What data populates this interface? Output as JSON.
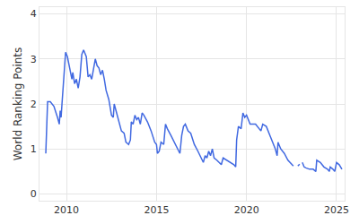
{
  "chart_data": {
    "type": "line",
    "y_label": "World Ranking Points",
    "color": "#4169e1",
    "grid": true,
    "xlim": [
      2008.5,
      2025.45
    ],
    "xticks": [
      2010,
      2015,
      2020,
      2025
    ],
    "ylim": [
      -0.15,
      4.15
    ],
    "yticks": [
      0,
      1,
      2,
      3,
      4
    ],
    "x": [
      2008.85,
      2008.9,
      2008.95,
      2009.1,
      2009.3,
      2009.5,
      2009.6,
      2009.65,
      2009.7,
      2009.75,
      2009.8,
      2009.9,
      2009.95,
      2010.05,
      2010.2,
      2010.3,
      2010.35,
      2010.45,
      2010.55,
      2010.65,
      2010.75,
      2010.85,
      2010.95,
      2011.1,
      2011.2,
      2011.3,
      2011.4,
      2011.5,
      2011.6,
      2011.7,
      2011.8,
      2011.9,
      2012.0,
      2012.1,
      2012.2,
      2012.35,
      2012.5,
      2012.6,
      2012.65,
      2012.75,
      2012.9,
      2013.05,
      2013.2,
      2013.3,
      2013.45,
      2013.55,
      2013.6,
      2013.7,
      2013.8,
      2013.9,
      2014.0,
      2014.1,
      2014.2,
      2014.3,
      2014.5,
      2014.7,
      2014.9,
      2015.0,
      2015.05,
      2015.15,
      2015.25,
      2015.4,
      2015.5,
      2015.6,
      2015.8,
      2016.0,
      2016.2,
      2016.3,
      2016.4,
      2016.5,
      2016.6,
      2016.75,
      2016.9,
      2017.1,
      2017.3,
      2017.5,
      2017.6,
      2017.7,
      2017.8,
      2017.9,
      2018.0,
      2018.1,
      2018.2,
      2018.35,
      2018.5,
      2018.6,
      2018.7,
      2018.9,
      2019.1,
      2019.3,
      2019.4,
      2019.45,
      2019.55,
      2019.7,
      2019.8,
      2019.9,
      2020.0,
      2020.2,
      2020.5,
      2020.7,
      2020.8,
      2020.9,
      2021.1,
      2021.3,
      2021.5,
      2021.6,
      2021.7,
      2021.75,
      2021.9,
      2022.1,
      2022.3,
      2022.5,
      2022.6,
      2022.7,
      2022.85,
      2022.95,
      2023.0,
      2023.1,
      2023.2,
      2023.3,
      2023.5,
      2023.7,
      2023.85,
      2023.9,
      2024.1,
      2024.3,
      2024.5,
      2024.6,
      2024.65,
      2024.8,
      2024.9,
      2025.0,
      2025.15,
      2025.3
    ],
    "values": [
      0.9,
      1.4,
      2.05,
      2.05,
      1.95,
      1.7,
      1.55,
      1.85,
      1.7,
      2.0,
      2.35,
      2.9,
      3.15,
      3.05,
      2.75,
      2.55,
      2.7,
      2.45,
      2.55,
      2.35,
      2.6,
      3.1,
      3.2,
      3.05,
      2.6,
      2.65,
      2.55,
      2.75,
      3.0,
      2.85,
      2.8,
      2.65,
      2.75,
      2.55,
      2.3,
      2.1,
      1.75,
      1.7,
      2.0,
      1.85,
      1.6,
      1.4,
      1.35,
      1.15,
      1.1,
      1.2,
      1.6,
      1.55,
      1.75,
      1.65,
      1.7,
      1.55,
      1.8,
      1.75,
      1.6,
      1.4,
      1.15,
      1.1,
      0.9,
      0.95,
      1.15,
      1.1,
      1.55,
      1.45,
      1.3,
      1.15,
      1.0,
      0.9,
      1.3,
      1.5,
      1.55,
      1.4,
      1.35,
      1.1,
      0.95,
      0.8,
      0.7,
      0.85,
      0.8,
      0.95,
      0.85,
      1.0,
      0.8,
      0.75,
      0.7,
      0.65,
      0.8,
      0.75,
      0.7,
      0.65,
      0.6,
      1.2,
      1.5,
      1.45,
      1.8,
      1.7,
      1.75,
      1.55,
      1.55,
      1.45,
      1.4,
      1.55,
      1.5,
      1.3,
      1.1,
      1.0,
      0.85,
      1.15,
      1.0,
      0.9,
      0.75,
      0.65,
      0.62,
      null,
      0.62,
      0.66,
      null,
      0.7,
      0.6,
      0.58,
      0.55,
      0.55,
      0.5,
      0.75,
      0.7,
      0.6,
      0.55,
      0.5,
      0.6,
      0.55,
      0.5,
      0.7,
      0.65,
      0.55
    ]
  }
}
